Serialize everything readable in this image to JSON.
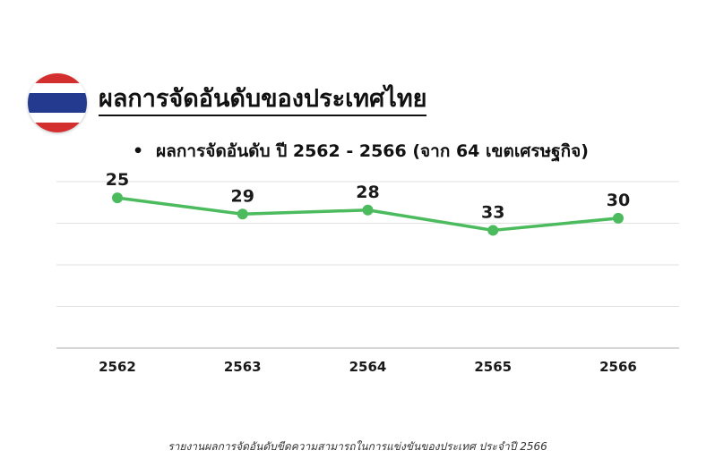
{
  "header": {
    "title": "ผลการจัดอันดับของประเทศไทย",
    "subtitle": "ผลการจัดอันดับ ปี 2562 - 2566 (จาก 64 เขตเศรษฐกิจ)",
    "bullet": "•"
  },
  "flag": {
    "colors": [
      "#D32F2F",
      "#FFFFFF",
      "#233A8E",
      "#FFFFFF",
      "#D32F2F"
    ]
  },
  "colors": {
    "line": "#4CBB5E",
    "grid": "#E2E2E2",
    "axis": "#BFBFBF"
  },
  "chart_data": {
    "type": "line",
    "categories": [
      "2562",
      "2563",
      "2564",
      "2565",
      "2566"
    ],
    "series": [
      {
        "values": [
          25,
          29,
          28,
          33,
          30
        ]
      }
    ],
    "ylim": [
      21,
      62
    ],
    "grid": true,
    "xlabel": "",
    "ylabel": ""
  },
  "caption": "รายงานผลการจัดอันดับขีดความสามารถในการแข่งขันของประเทศ ประจำปี 2566"
}
